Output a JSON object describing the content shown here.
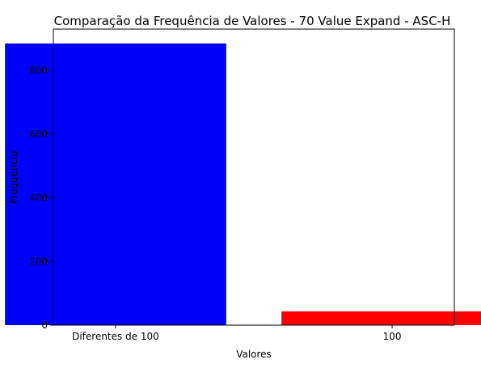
{
  "chart_data": {
    "type": "bar",
    "title": "Comparação da Frequência de Valores - 70 Value Expand - ASC-H",
    "xlabel": "Valores",
    "ylabel": "Frequência",
    "categories": [
      "Diferentes de 100",
      "100"
    ],
    "values": [
      885,
      43
    ],
    "colors": [
      "#0000ff",
      "#ff0000"
    ],
    "ylim": [
      0,
      930
    ],
    "yticks": [
      0,
      200,
      400,
      600,
      800
    ],
    "grid": false,
    "legend": "none"
  }
}
